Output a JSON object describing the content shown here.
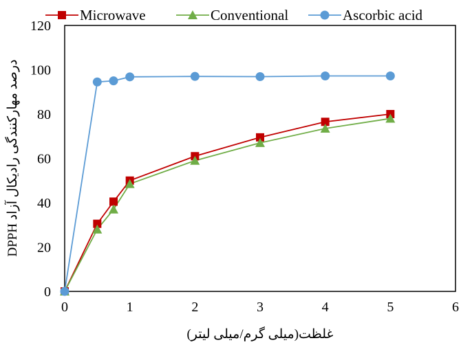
{
  "chart_data": {
    "type": "line",
    "xlabel": "غلظت(میلی گرم/میلی لیتر)",
    "ylabel": "درصد مهارکنندگی  رادیکال آزاد DPPH",
    "xlim": [
      0,
      6
    ],
    "ylim": [
      0,
      120
    ],
    "x_ticks": [
      "0",
      "1",
      "2",
      "3",
      "4",
      "5",
      "6"
    ],
    "y_ticks": [
      "0",
      "20",
      "40",
      "60",
      "80",
      "100",
      "120"
    ],
    "grid": false,
    "legend_position": "top",
    "series": [
      {
        "name": "Microwave",
        "color": "#C00000",
        "marker": "square",
        "x": [
          0,
          0.5,
          0.75,
          1,
          2,
          3,
          4,
          5
        ],
        "y": [
          0,
          30.5,
          40.5,
          50,
          61,
          69.5,
          76.5,
          80
        ]
      },
      {
        "name": "Conventional",
        "color": "#70AD47",
        "marker": "triangle",
        "x": [
          0,
          0.5,
          0.75,
          1,
          2,
          3,
          4,
          5
        ],
        "y": [
          0,
          28,
          37,
          48.5,
          59,
          67,
          73.5,
          78
        ]
      },
      {
        "name": "Ascorbic acid",
        "color": "#5B9BD5",
        "marker": "circle",
        "x": [
          0,
          0.5,
          0.75,
          1,
          2,
          3,
          4,
          5
        ],
        "y": [
          0,
          94.5,
          95,
          96.8,
          97,
          96.9,
          97.2,
          97.2
        ]
      }
    ]
  }
}
